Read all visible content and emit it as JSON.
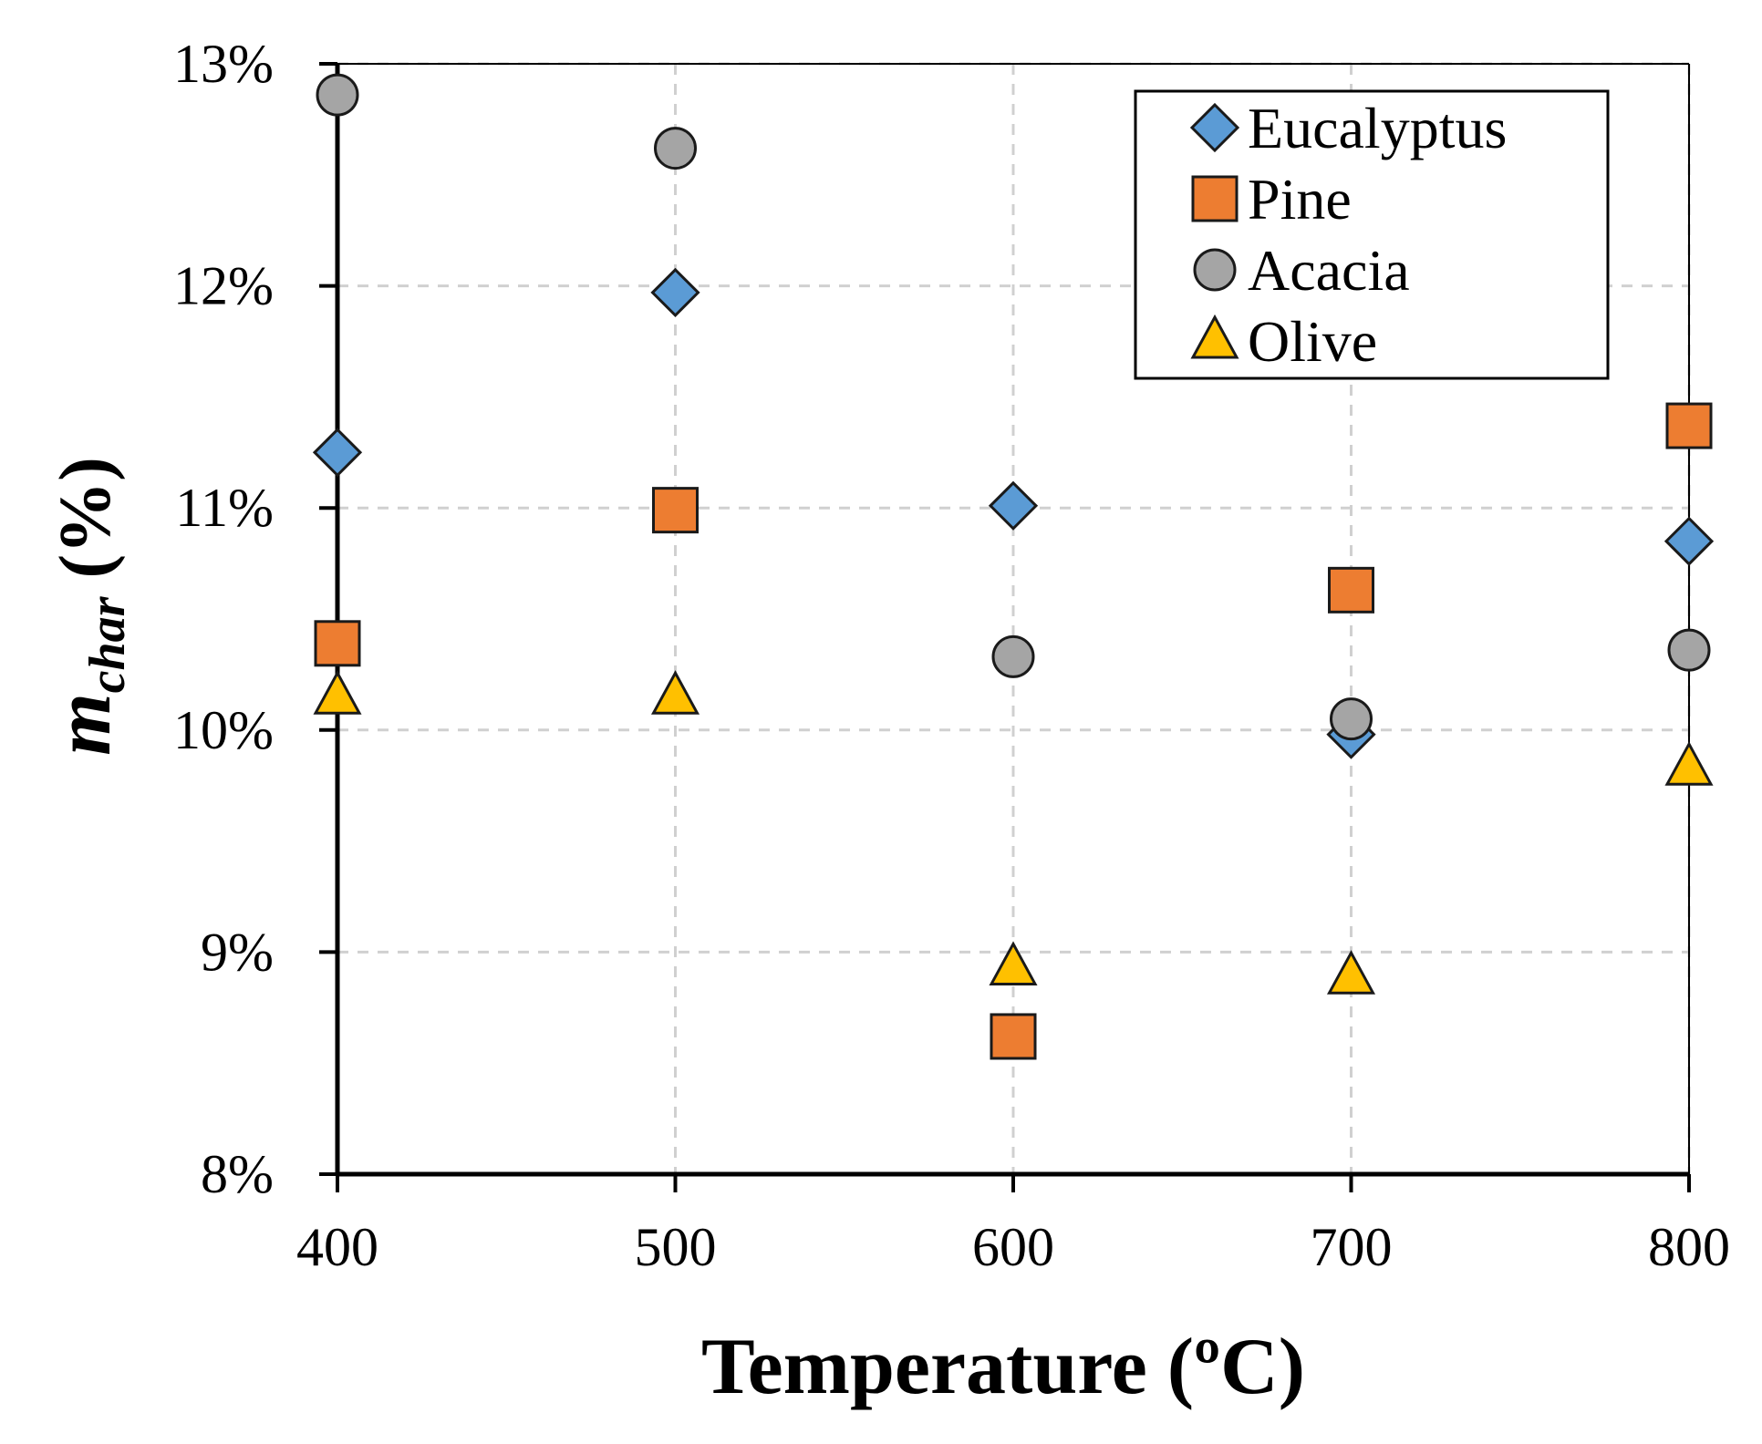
{
  "chart_data": {
    "type": "scatter",
    "title": "",
    "xlabel": "Temperature (ºC)",
    "ylabel": {
      "main": "m",
      "subscript": "char",
      "suffix": " (%)"
    },
    "xlim": [
      400,
      800
    ],
    "ylim": [
      0.08,
      0.13
    ],
    "x_ticks": [
      400,
      500,
      600,
      700,
      800
    ],
    "x_tick_labels": [
      "400",
      "500",
      "600",
      "700",
      "800"
    ],
    "y_ticks": [
      0.08,
      0.09,
      0.1,
      0.11,
      0.12,
      0.13
    ],
    "y_tick_labels": [
      "8%",
      "9%",
      "10%",
      "11%",
      "12%",
      "13%"
    ],
    "grid": true,
    "legend_position": "top-right",
    "series": [
      {
        "name": "Eucalyptus",
        "marker": "diamond",
        "color": "#5B9BD5",
        "x": [
          400,
          500,
          600,
          700,
          800
        ],
        "values": [
          0.1125,
          0.1197,
          0.1101,
          0.0998,
          0.1085
        ]
      },
      {
        "name": "Pine",
        "marker": "square",
        "color": "#ED7D31",
        "x": [
          400,
          500,
          600,
          700,
          800
        ],
        "values": [
          0.1039,
          0.1099,
          0.0862,
          0.1063,
          0.1137
        ]
      },
      {
        "name": "Acacia",
        "marker": "circle",
        "color": "#A5A5A5",
        "x": [
          400,
          500,
          600,
          700,
          800
        ],
        "values": [
          0.1286,
          0.1262,
          0.1033,
          0.1005,
          0.1036
        ]
      },
      {
        "name": "Olive",
        "marker": "triangle",
        "color": "#FFC000",
        "x": [
          400,
          500,
          600,
          700,
          800
        ],
        "values": [
          0.1015,
          0.1015,
          0.0893,
          0.0889,
          0.0983
        ]
      }
    ]
  }
}
